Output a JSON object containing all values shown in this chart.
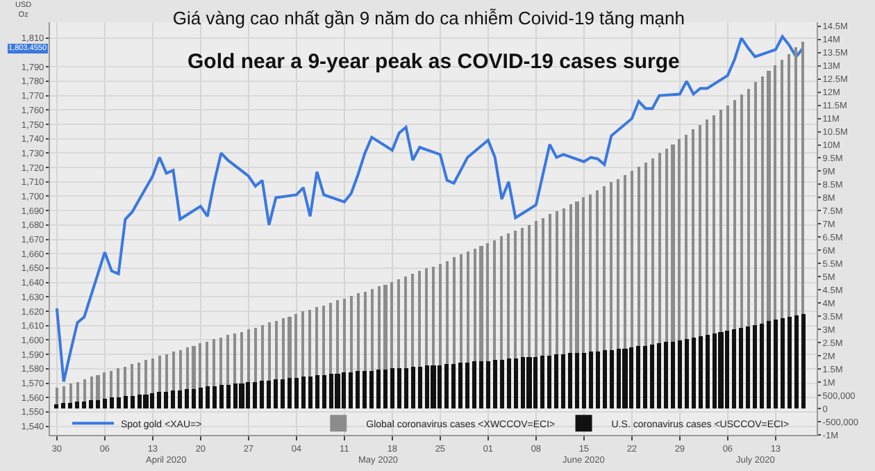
{
  "chart_data": {
    "type": "line",
    "title": "Giá vàng cao nhất gần 9 năm do ca nhiễm Coivid-19 tăng mạnh",
    "subtitle": "Gold near a 9-year peak as COVID-19 cases surge",
    "ylabel": "USD Oz",
    "series": [
      {
        "name": "Global coronavirus cases <XWCCOV=ECI>",
        "type": "bar",
        "axis": "y2",
        "color": "#8c8c8c",
        "values": [
          780000,
          860000,
          940000,
          1020000,
          1100000,
          1190000,
          1270000,
          1350000,
          1430000,
          1510000,
          1590000,
          1680000,
          1760000,
          1840000,
          1920000,
          2000000,
          2080000,
          2160000,
          2230000,
          2310000,
          2390000,
          2470000,
          2550000,
          2620000,
          2700000,
          2770000,
          2850000,
          2920000,
          3000000,
          3080000,
          3170000,
          3250000,
          3330000,
          3410000,
          3500000,
          3580000,
          3670000,
          3750000,
          3840000,
          3920000,
          4010000,
          4090000,
          4180000,
          4270000,
          4360000,
          4450000,
          4530000,
          4620000,
          4710000,
          4800000,
          4900000,
          5000000,
          5100000,
          5200000,
          5300000,
          5400000,
          5500000,
          5610000,
          5720000,
          5830000,
          5940000,
          6050000,
          6160000,
          6270000,
          6390000,
          6510000,
          6630000,
          6740000,
          6860000,
          6980000,
          7100000,
          7230000,
          7360000,
          7490000,
          7610000,
          7740000,
          7870000,
          8000000,
          8140000,
          8290000,
          8430000,
          8570000,
          8710000,
          8860000,
          9000000,
          9170000,
          9340000,
          9510000,
          9690000,
          9860000,
          10030000,
          10200000,
          10390000,
          10570000,
          10760000,
          10940000,
          11130000,
          11310000,
          11500000,
          11710000,
          11930000,
          12140000,
          12360000,
          12570000,
          12790000,
          13000000,
          13230000,
          13450000,
          13680000,
          13900000
        ]
      },
      {
        "name": "U.S. coronavirus cases <USCCOV=ECI>",
        "type": "bar",
        "axis": "y2",
        "color": "#111111",
        "values": [
          160000,
          190000,
          220000,
          250000,
          280000,
          310000,
          340000,
          370000,
          400000,
          430000,
          460000,
          490000,
          520000,
          550000,
          580000,
          610000,
          640000,
          670000,
          700000,
          730000,
          760000,
          790000,
          820000,
          850000,
          880000,
          910000,
          930000,
          960000,
          990000,
          1020000,
          1040000,
          1070000,
          1100000,
          1120000,
          1150000,
          1180000,
          1200000,
          1230000,
          1250000,
          1280000,
          1300000,
          1330000,
          1350000,
          1370000,
          1400000,
          1420000,
          1440000,
          1470000,
          1490000,
          1510000,
          1530000,
          1550000,
          1570000,
          1600000,
          1620000,
          1640000,
          1660000,
          1680000,
          1700000,
          1720000,
          1750000,
          1770000,
          1790000,
          1810000,
          1830000,
          1860000,
          1880000,
          1900000,
          1930000,
          1950000,
          1970000,
          1990000,
          2020000,
          2040000,
          2060000,
          2090000,
          2110000,
          2130000,
          2160000,
          2180000,
          2210000,
          2230000,
          2260000,
          2280000,
          2310000,
          2350000,
          2390000,
          2430000,
          2470000,
          2510000,
          2550000,
          2590000,
          2640000,
          2690000,
          2740000,
          2790000,
          2840000,
          2890000,
          2940000,
          3000000,
          3060000,
          3120000,
          3180000,
          3240000,
          3300000,
          3360000,
          3420000,
          3480000,
          3540000,
          3600000
        ]
      },
      {
        "name": "Spot gold <XAU=>",
        "axis": "y",
        "color": "#3a78e0",
        "x": [
          "2020-03-30",
          "2020-03-31",
          "2020-04-01",
          "2020-04-02",
          "2020-04-03",
          "2020-04-06",
          "2020-04-07",
          "2020-04-08",
          "2020-04-09",
          "2020-04-10",
          "2020-04-13",
          "2020-04-14",
          "2020-04-15",
          "2020-04-16",
          "2020-04-17",
          "2020-04-20",
          "2020-04-21",
          "2020-04-22",
          "2020-04-23",
          "2020-04-24",
          "2020-04-27",
          "2020-04-28",
          "2020-04-29",
          "2020-04-30",
          "2020-05-01",
          "2020-05-04",
          "2020-05-05",
          "2020-05-06",
          "2020-05-07",
          "2020-05-08",
          "2020-05-11",
          "2020-05-12",
          "2020-05-13",
          "2020-05-14",
          "2020-05-15",
          "2020-05-18",
          "2020-05-19",
          "2020-05-20",
          "2020-05-21",
          "2020-05-22",
          "2020-05-25",
          "2020-05-26",
          "2020-05-27",
          "2020-05-28",
          "2020-05-29",
          "2020-06-01",
          "2020-06-02",
          "2020-06-03",
          "2020-06-04",
          "2020-06-05",
          "2020-06-08",
          "2020-06-09",
          "2020-06-10",
          "2020-06-11",
          "2020-06-12",
          "2020-06-15",
          "2020-06-16",
          "2020-06-17",
          "2020-06-18",
          "2020-06-19",
          "2020-06-22",
          "2020-06-23",
          "2020-06-24",
          "2020-06-25",
          "2020-06-26",
          "2020-06-29",
          "2020-06-30",
          "2020-07-01",
          "2020-07-02",
          "2020-07-03",
          "2020-07-06",
          "2020-07-07",
          "2020-07-08",
          "2020-07-09",
          "2020-07-10",
          "2020-07-13",
          "2020-07-14",
          "2020-07-15",
          "2020-07-16",
          "2020-07-17"
        ],
        "values": [
          1622,
          1571,
          1592,
          1612,
          1616,
          1661,
          1648,
          1646,
          1684,
          1689,
          1714,
          1727,
          1716,
          1718,
          1684,
          1693,
          1686,
          1710,
          1730,
          1725,
          1714,
          1707,
          1711,
          1680,
          1699,
          1701,
          1706,
          1686,
          1717,
          1701,
          1696,
          1702,
          1715,
          1730,
          1741,
          1732,
          1744,
          1748,
          1725,
          1734,
          1729,
          1711,
          1709,
          1718,
          1727,
          1739,
          1727,
          1698,
          1710,
          1685,
          1694,
          1715,
          1736,
          1727,
          1729,
          1724,
          1727,
          1726,
          1722,
          1742,
          1754,
          1766,
          1761,
          1761,
          1770,
          1771,
          1780,
          1771,
          1775,
          1775,
          1784,
          1795,
          1810,
          1803,
          1797,
          1802,
          1811,
          1805,
          1797,
          1803
        ]
      }
    ],
    "annotations": [
      "1,803.4550"
    ],
    "x": [
      "2020-03-30",
      "2020-03-31",
      "2020-04-01",
      "2020-04-02",
      "2020-04-03",
      "2020-04-04",
      "2020-04-05",
      "2020-04-06",
      "2020-04-07",
      "2020-04-08",
      "2020-04-09",
      "2020-04-10",
      "2020-04-11",
      "2020-04-12",
      "2020-04-13",
      "2020-04-14",
      "2020-04-15",
      "2020-04-16",
      "2020-04-17",
      "2020-04-18",
      "2020-04-19",
      "2020-04-20",
      "2020-04-21",
      "2020-04-22",
      "2020-04-23",
      "2020-04-24",
      "2020-04-25",
      "2020-04-26",
      "2020-04-27",
      "2020-04-28",
      "2020-04-29",
      "2020-04-30",
      "2020-05-01",
      "2020-05-02",
      "2020-05-03",
      "2020-05-04",
      "2020-05-05",
      "2020-05-06",
      "2020-05-07",
      "2020-05-08",
      "2020-05-09",
      "2020-05-10",
      "2020-05-11",
      "2020-05-12",
      "2020-05-13",
      "2020-05-14",
      "2020-05-15",
      "2020-05-16",
      "2020-05-17",
      "2020-05-18",
      "2020-05-19",
      "2020-05-20",
      "2020-05-21",
      "2020-05-22",
      "2020-05-23",
      "2020-05-24",
      "2020-05-25",
      "2020-05-26",
      "2020-05-27",
      "2020-05-28",
      "2020-05-29",
      "2020-05-30",
      "2020-05-31",
      "2020-06-01",
      "2020-06-02",
      "2020-06-03",
      "2020-06-04",
      "2020-06-05",
      "2020-06-06",
      "2020-06-07",
      "2020-06-08",
      "2020-06-09",
      "2020-06-10",
      "2020-06-11",
      "2020-06-12",
      "2020-06-13",
      "2020-06-14",
      "2020-06-15",
      "2020-06-16",
      "2020-06-17",
      "2020-06-18",
      "2020-06-19",
      "2020-06-20",
      "2020-06-21",
      "2020-06-22",
      "2020-06-23",
      "2020-06-24",
      "2020-06-25",
      "2020-06-26",
      "2020-06-27",
      "2020-06-28",
      "2020-06-29",
      "2020-06-30",
      "2020-07-01",
      "2020-07-02",
      "2020-07-03",
      "2020-07-04",
      "2020-07-05",
      "2020-07-06",
      "2020-07-07",
      "2020-07-08",
      "2020-07-09",
      "2020-07-10",
      "2020-07-11",
      "2020-07-12",
      "2020-07-13",
      "2020-07-14",
      "2020-07-15",
      "2020-07-16",
      "2020-07-17"
    ],
    "xlim": [
      "2020-03-29",
      "2020-07-19"
    ],
    "xticks": [
      {
        "value": "2020-03-30",
        "label": "30"
      },
      {
        "value": "2020-04-06",
        "label": "06"
      },
      {
        "value": "2020-04-13",
        "label": "13"
      },
      {
        "value": "2020-04-20",
        "label": "20"
      },
      {
        "value": "2020-04-27",
        "label": "27"
      },
      {
        "value": "2020-05-04",
        "label": "04"
      },
      {
        "value": "2020-05-11",
        "label": "11"
      },
      {
        "value": "2020-05-18",
        "label": "18"
      },
      {
        "value": "2020-05-25",
        "label": "25"
      },
      {
        "value": "2020-06-01",
        "label": "01"
      },
      {
        "value": "2020-06-08",
        "label": "08"
      },
      {
        "value": "2020-06-15",
        "label": "15"
      },
      {
        "value": "2020-06-22",
        "label": "22"
      },
      {
        "value": "2020-06-29",
        "label": "29"
      },
      {
        "value": "2020-07-06",
        "label": "06"
      },
      {
        "value": "2020-07-13",
        "label": "13"
      }
    ],
    "x2lim": [
      "2020-03-29",
      "2020-07-19"
    ],
    "x2ticks": [
      {
        "value": "2020-04-15",
        "label": "April 2020"
      },
      {
        "value": "2020-05-16",
        "label": "May 2020"
      },
      {
        "value": "2020-06-15",
        "label": "June 2020"
      },
      {
        "value": "2020-07-10",
        "label": "July 2020"
      }
    ],
    "ylim": [
      1534,
      1821
    ],
    "yticks": [
      {
        "value": 1540,
        "label": "1,540"
      },
      {
        "value": 1550,
        "label": "1,550"
      },
      {
        "value": 1560,
        "label": "1,560"
      },
      {
        "value": 1570,
        "label": "1,570"
      },
      {
        "value": 1580,
        "label": "1,580"
      },
      {
        "value": 1590,
        "label": "1,590"
      },
      {
        "value": 1600,
        "label": "1,600"
      },
      {
        "value": 1610,
        "label": "1,610"
      },
      {
        "value": 1620,
        "label": "1,620"
      },
      {
        "value": 1630,
        "label": "1,630"
      },
      {
        "value": 1640,
        "label": "1,640"
      },
      {
        "value": 1650,
        "label": "1,650"
      },
      {
        "value": 1660,
        "label": "1,660"
      },
      {
        "value": 1670,
        "label": "1,670"
      },
      {
        "value": 1680,
        "label": "1,680"
      },
      {
        "value": 1690,
        "label": "1,690"
      },
      {
        "value": 1700,
        "label": "1,700"
      },
      {
        "value": 1710,
        "label": "1,710"
      },
      {
        "value": 1720,
        "label": "1,720"
      },
      {
        "value": 1730,
        "label": "1,730"
      },
      {
        "value": 1740,
        "label": "1,740"
      },
      {
        "value": 1750,
        "label": "1,750"
      },
      {
        "value": 1760,
        "label": "1,760"
      },
      {
        "value": 1770,
        "label": "1,770"
      },
      {
        "value": 1780,
        "label": "1,780"
      },
      {
        "value": 1790,
        "label": "1,790"
      },
      {
        "value": 1810,
        "label": "1,810"
      }
    ],
    "y2lim": [
      -1000000,
      14650000
    ],
    "y2ticks": [
      {
        "value": -1000000,
        "label": "-1M"
      },
      {
        "value": -500000,
        "label": "-500,000"
      },
      0,
      {
        "value": 500000,
        "label": "500,000"
      },
      {
        "value": 1000000,
        "label": "1M"
      },
      {
        "value": 1500000,
        "label": "1.5M"
      },
      {
        "value": 2000000,
        "label": "2M"
      },
      {
        "value": 2500000,
        "label": "2.5M"
      },
      {
        "value": 3000000,
        "label": "3M"
      },
      {
        "value": 3500000,
        "label": "3.5M"
      },
      {
        "value": 4000000,
        "label": "4M"
      },
      {
        "value": 4500000,
        "label": "4.5M"
      },
      {
        "value": 5000000,
        "label": "5M"
      },
      {
        "value": 5500000,
        "label": "5.5M"
      },
      {
        "value": 6000000,
        "label": "6M"
      },
      {
        "value": 6500000,
        "label": "6.5M"
      },
      {
        "value": 7000000,
        "label": "7M"
      },
      {
        "value": 7500000,
        "label": "7.5M"
      },
      {
        "value": 8000000,
        "label": "8M"
      },
      {
        "value": 8500000,
        "label": "8.5M"
      },
      {
        "value": 9000000,
        "label": "9M"
      },
      {
        "value": 9500000,
        "label": "9.5M"
      },
      {
        "value": 10000000,
        "label": "10M"
      },
      {
        "value": 10500000,
        "label": "10.5M"
      },
      {
        "value": 11000000,
        "label": "11M"
      },
      {
        "value": 11500000,
        "label": "11.5M"
      },
      {
        "value": 12000000,
        "label": "12M"
      },
      {
        "value": 12500000,
        "label": "12.5M"
      },
      {
        "value": 13000000,
        "label": "13M"
      },
      {
        "value": 13500000,
        "label": "13.5M"
      },
      {
        "value": 14000000,
        "label": "14M"
      },
      {
        "value": 14500000,
        "label": "14.5M"
      }
    ],
    "grid": true,
    "legend": "bottom",
    "marker": "none",
    "line_style": "solid"
  }
}
